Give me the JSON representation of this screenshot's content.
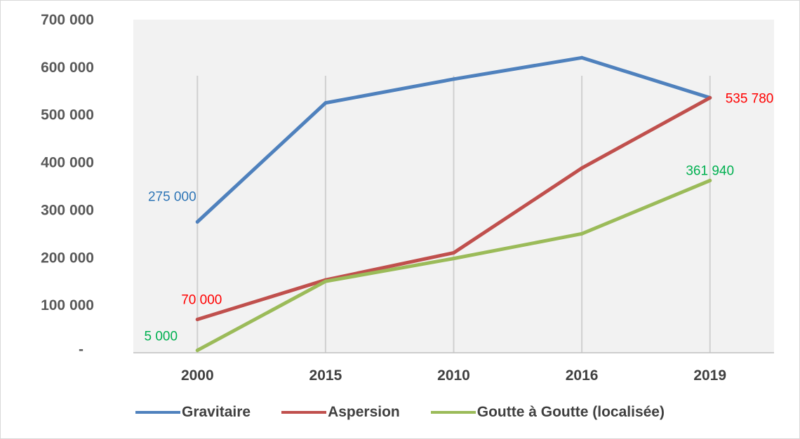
{
  "chart_data": {
    "type": "line",
    "title": "",
    "xlabel": "",
    "ylabel": "",
    "categories": [
      "2000",
      "2015",
      "2010",
      "2016",
      "2019"
    ],
    "ylim": [
      0,
      700000
    ],
    "yticks": [
      0,
      100000,
      200000,
      300000,
      400000,
      500000,
      600000,
      700000
    ],
    "ytick_labels": [
      "-",
      "100 000",
      "200 000",
      "300 000",
      "400 000",
      "500 000",
      "600 000",
      "700 000"
    ],
    "grid": "vertical",
    "legend_position": "bottom",
    "series": [
      {
        "name": "Gravitaire",
        "color": "#4f81bd",
        "values": [
          275000,
          525000,
          575000,
          620000,
          535780
        ],
        "data_labels": [
          {
            "index": 0,
            "text": "275 000",
            "color": "#2e75b6"
          }
        ]
      },
      {
        "name": "Aspersion",
        "color": "#c0504d",
        "values": [
          70000,
          153000,
          210000,
          388000,
          535780
        ],
        "data_labels": [
          {
            "index": 0,
            "text": "70 000",
            "color": "#ff0000"
          },
          {
            "index": 4,
            "text": "535 780",
            "color": "#ff0000"
          }
        ]
      },
      {
        "name": "Goutte à Goutte (localisée)",
        "color": "#9bbb59",
        "values": [
          5000,
          150000,
          198000,
          250000,
          361940
        ],
        "data_labels": [
          {
            "index": 0,
            "text": "5 000",
            "color": "#00b050"
          },
          {
            "index": 4,
            "text": "361 940",
            "color": "#00b050"
          }
        ]
      }
    ]
  }
}
